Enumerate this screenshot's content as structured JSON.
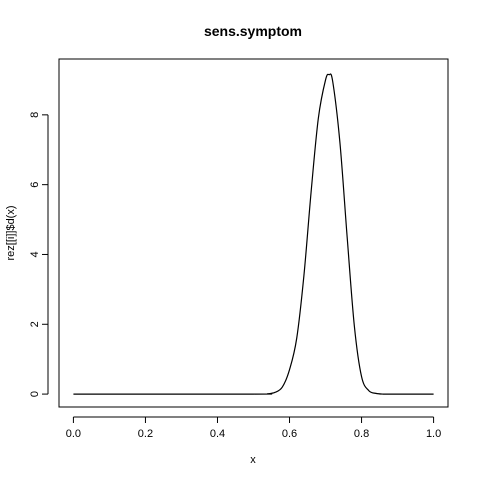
{
  "chart_data": {
    "type": "line",
    "title": "sens.symptom",
    "xlabel": "x",
    "ylabel": "rez[[i]]$d(x)",
    "xlim": [
      -0.04,
      1.04
    ],
    "ylim": [
      -0.37,
      9.6
    ],
    "xticks": [
      0.0,
      0.2,
      0.4,
      0.6,
      0.8,
      1.0
    ],
    "xtick_labels": [
      "0.0",
      "0.2",
      "0.4",
      "0.6",
      "0.8",
      "1.0"
    ],
    "yticks": [
      0,
      2,
      4,
      6,
      8
    ],
    "ytick_labels": [
      "0",
      "2",
      "4",
      "6",
      "8"
    ],
    "grid": false,
    "series": [
      {
        "color": "#000000",
        "x": [
          0.0,
          0.5,
          0.54,
          0.56,
          0.58,
          0.6,
          0.62,
          0.64,
          0.66,
          0.68,
          0.7,
          0.71,
          0.72,
          0.74,
          0.76,
          0.78,
          0.8,
          0.82,
          0.84,
          0.86,
          0.9,
          1.0
        ],
        "y": [
          0.0,
          0.0,
          0.01,
          0.05,
          0.2,
          0.7,
          1.6,
          3.4,
          5.8,
          7.9,
          9.0,
          9.15,
          8.95,
          7.2,
          4.5,
          1.95,
          0.5,
          0.1,
          0.02,
          0.0,
          0.0,
          0.0
        ]
      }
    ]
  }
}
